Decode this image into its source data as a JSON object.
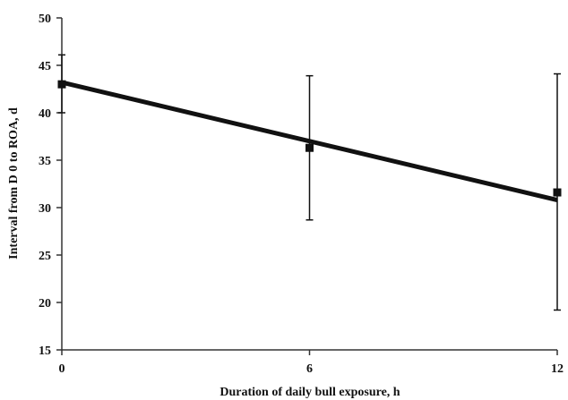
{
  "chart_data": {
    "type": "scatter",
    "title": "",
    "xlabel": "Duration of daily bull exposure, h",
    "ylabel": "Interval from D 0 to ROA, d",
    "x_ticks": [
      0,
      6,
      12
    ],
    "x_tick_labels": [
      "0",
      "6",
      "12"
    ],
    "y_ticks": [
      15,
      20,
      25,
      30,
      35,
      40,
      45,
      50
    ],
    "y_tick_labels": [
      "15",
      "20",
      "25",
      "30",
      "35",
      "40",
      "45",
      "50"
    ],
    "xlim": [
      0,
      12
    ],
    "ylim": [
      15,
      50
    ],
    "grid": false,
    "legend": "none",
    "series": [
      {
        "x": [
          0,
          6,
          12
        ],
        "y": [
          43.0,
          36.3,
          31.6
        ],
        "error_low": [
          40.0,
          28.7,
          19.2
        ],
        "error_high": [
          46.1,
          43.9,
          44.1
        ],
        "marker": "square",
        "color": "#111111"
      }
    ],
    "trendline": {
      "x": [
        0,
        12
      ],
      "y": [
        43.2,
        30.8
      ],
      "color": "#111111"
    }
  }
}
